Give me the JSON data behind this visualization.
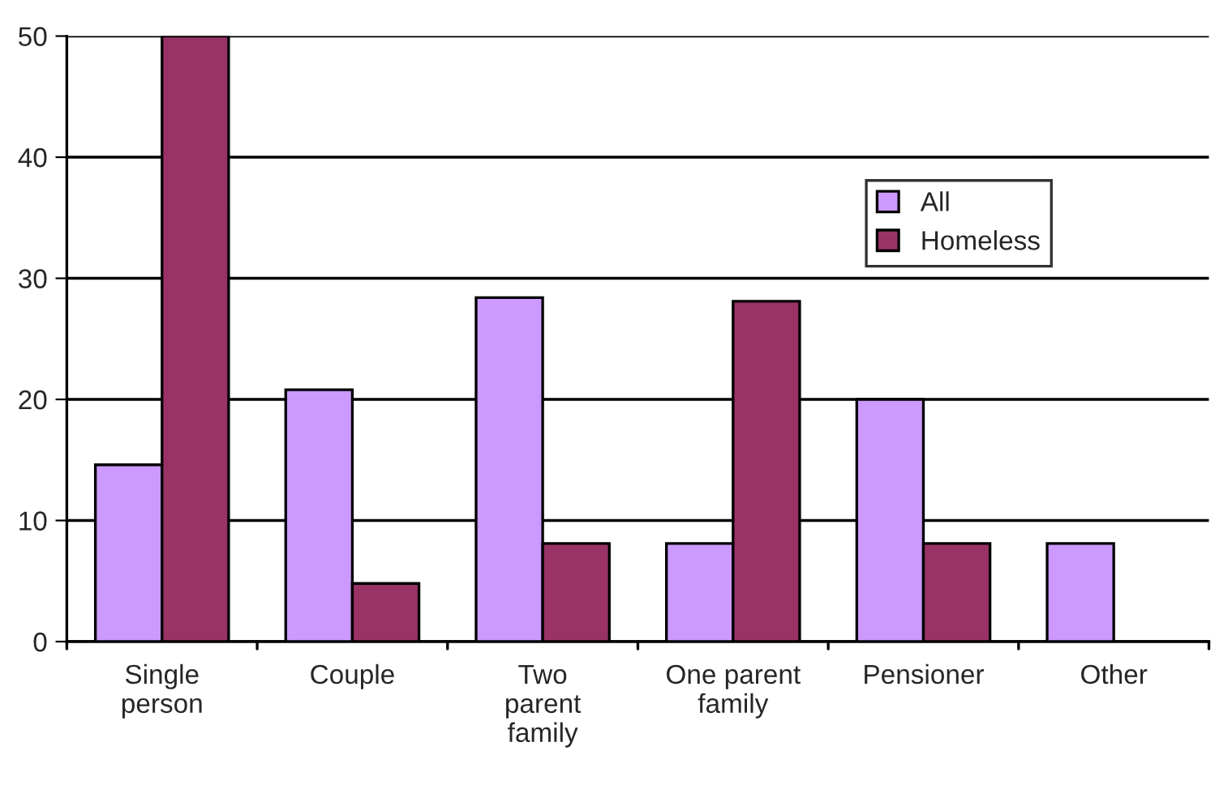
{
  "chart_data": {
    "type": "bar",
    "categories": [
      "Single\nperson",
      "Couple",
      "Two\nparent\nfamily",
      "One parent\nfamily",
      "Pensioner",
      "Other"
    ],
    "series": [
      {
        "name": "All",
        "color": "#cc99ff",
        "values": [
          14.6,
          20.8,
          28.4,
          8.1,
          20,
          8.1
        ]
      },
      {
        "name": "Homeless",
        "color": "#993366",
        "values": [
          50,
          4.8,
          8.1,
          28.1,
          8.1,
          null
        ]
      }
    ],
    "ylim": [
      0,
      50
    ],
    "yticks": [
      0,
      10,
      20,
      30,
      40,
      50
    ],
    "grid": "y",
    "legend": "top right"
  }
}
